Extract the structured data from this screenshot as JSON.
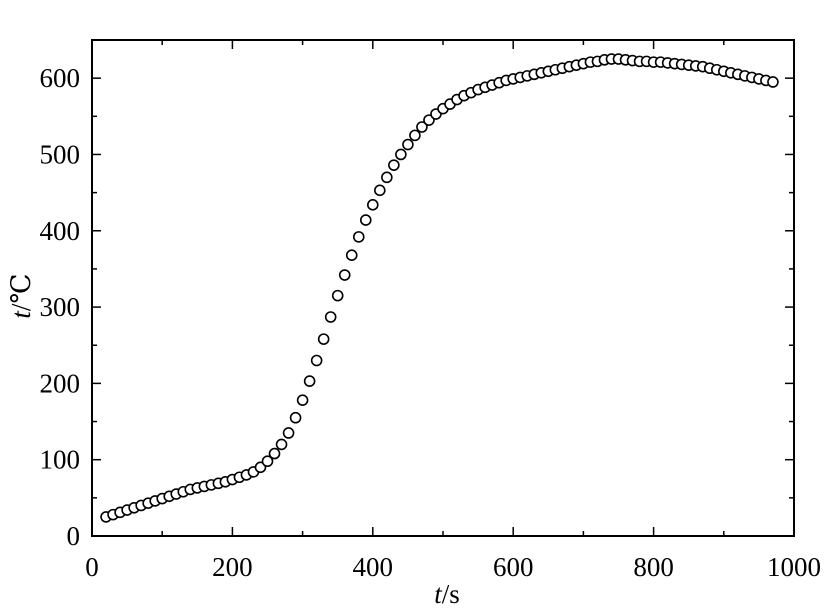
{
  "chart_data": {
    "type": "scatter",
    "title": "",
    "xlabel_var": "t",
    "xlabel_unit": "/s",
    "ylabel_var": "t",
    "ylabel_unit": "/℃",
    "xlim": [
      0,
      1000
    ],
    "ylim": [
      0,
      650
    ],
    "xticks": [
      0,
      200,
      400,
      600,
      800,
      1000
    ],
    "yticks": [
      0,
      100,
      200,
      300,
      400,
      500,
      600
    ],
    "grid": false,
    "legend": "none",
    "marker": "open-circle",
    "marker_color": "#000000",
    "x": [
      20,
      30,
      40,
      50,
      60,
      70,
      80,
      90,
      100,
      110,
      120,
      130,
      140,
      150,
      160,
      170,
      180,
      190,
      200,
      210,
      220,
      230,
      240,
      250,
      260,
      270,
      280,
      290,
      300,
      310,
      320,
      330,
      340,
      350,
      360,
      370,
      380,
      390,
      400,
      410,
      420,
      430,
      440,
      450,
      460,
      470,
      480,
      490,
      500,
      510,
      520,
      530,
      540,
      550,
      560,
      570,
      580,
      590,
      600,
      610,
      620,
      630,
      640,
      650,
      660,
      670,
      680,
      690,
      700,
      710,
      720,
      730,
      740,
      750,
      760,
      770,
      780,
      790,
      800,
      810,
      820,
      830,
      840,
      850,
      860,
      870,
      880,
      890,
      900,
      910,
      920,
      930,
      940,
      950,
      960,
      970
    ],
    "y": [
      25,
      28,
      31,
      34,
      37,
      40,
      43,
      46,
      49,
      52,
      55,
      58,
      61,
      63,
      65,
      67,
      69,
      71,
      74,
      77,
      80,
      84,
      90,
      98,
      108,
      120,
      135,
      155,
      178,
      203,
      230,
      258,
      287,
      315,
      342,
      368,
      392,
      414,
      434,
      453,
      470,
      486,
      500,
      513,
      525,
      536,
      545,
      553,
      560,
      566,
      572,
      577,
      581,
      585,
      588,
      591,
      594,
      597,
      599,
      601,
      603,
      605,
      607,
      609,
      611,
      613,
      615,
      617,
      619,
      621,
      622,
      624,
      625,
      625,
      624,
      623,
      622,
      622,
      621,
      621,
      620,
      619,
      618,
      617,
      616,
      615,
      613,
      611,
      609,
      607,
      605,
      603,
      601,
      599,
      597,
      595
    ]
  }
}
